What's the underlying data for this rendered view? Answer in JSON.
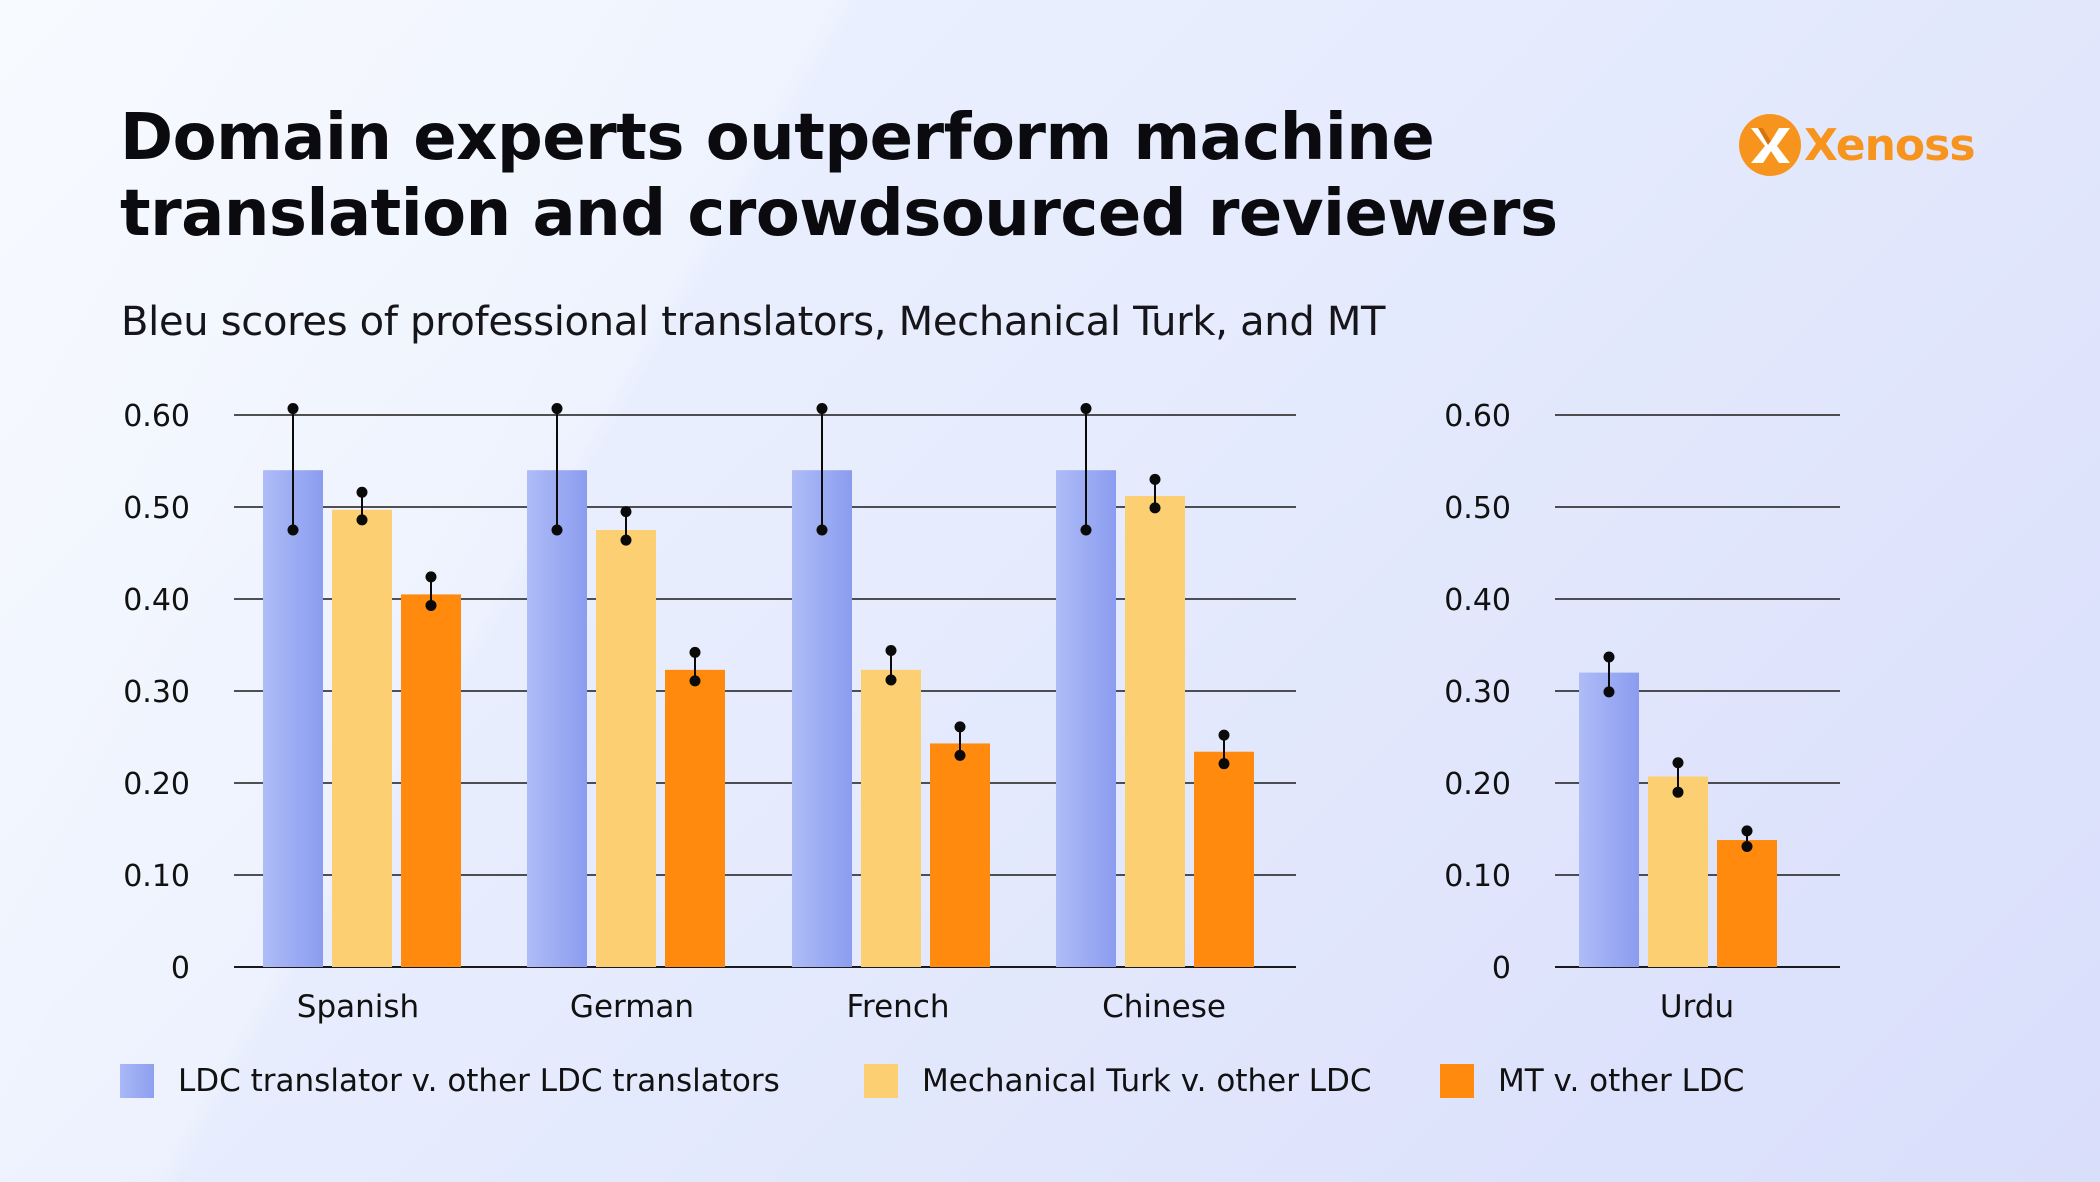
{
  "title": "Domain experts outperform machine translation and crowdsourced reviewers",
  "subtitle": "Bleu scores of professional translators, Mechanical Turk, and MT",
  "logo": {
    "text": "Xenoss",
    "icon": "xenoss-logo-icon",
    "color": "#f7941d"
  },
  "legend": [
    {
      "label": "LDC translator v. other LDC translators",
      "color": "#9aaaf2"
    },
    {
      "label": "Mechanical Turk v. other LDC",
      "color": "#fccf72"
    },
    {
      "label": "MT v. other LDC",
      "color": "#ff8a0d"
    }
  ],
  "chart_data": [
    {
      "type": "bar",
      "title": "",
      "xlabel": "",
      "ylabel": "",
      "ylim": [
        0,
        0.6
      ],
      "yticks": [
        "0",
        "0.10",
        "0.20",
        "0.30",
        "0.40",
        "0.50",
        "0.60"
      ],
      "grid": true,
      "legend_position": "bottom",
      "categories": [
        "Spanish",
        "German",
        "French",
        "Chinese"
      ],
      "series": [
        {
          "name": "LDC translator v. other LDC translators",
          "color": "#9aaaf2",
          "values": [
            0.54,
            0.54,
            0.54,
            0.54
          ],
          "error_low": [
            0.475,
            0.475,
            0.475,
            0.475
          ],
          "error_high": [
            0.607,
            0.607,
            0.607,
            0.607
          ]
        },
        {
          "name": "Mechanical Turk v. other LDC",
          "color": "#fccf72",
          "values": [
            0.497,
            0.475,
            0.323,
            0.512
          ],
          "error_low": [
            0.486,
            0.464,
            0.312,
            0.499
          ],
          "error_high": [
            0.516,
            0.495,
            0.344,
            0.53
          ]
        },
        {
          "name": "MT v. other LDC",
          "color": "#ff8a0d",
          "values": [
            0.405,
            0.323,
            0.243,
            0.234
          ],
          "error_low": [
            0.393,
            0.311,
            0.23,
            0.221
          ],
          "error_high": [
            0.424,
            0.342,
            0.261,
            0.252
          ]
        }
      ]
    },
    {
      "type": "bar",
      "title": "",
      "xlabel": "",
      "ylabel": "",
      "ylim": [
        0,
        0.6
      ],
      "yticks": [
        "0",
        "0.10",
        "0.20",
        "0.30",
        "0.40",
        "0.50",
        "0.60"
      ],
      "grid": true,
      "categories": [
        "Urdu"
      ],
      "series": [
        {
          "name": "LDC translator v. other LDC translators",
          "color": "#9aaaf2",
          "values": [
            0.32
          ],
          "error_low": [
            0.299
          ],
          "error_high": [
            0.337
          ]
        },
        {
          "name": "Mechanical Turk v. other LDC",
          "color": "#fccf72",
          "values": [
            0.207
          ],
          "error_low": [
            0.19
          ],
          "error_high": [
            0.222
          ]
        },
        {
          "name": "MT v. other LDC",
          "color": "#ff8a0d",
          "values": [
            0.138
          ],
          "error_low": [
            0.131
          ],
          "error_high": [
            0.148
          ]
        }
      ]
    }
  ]
}
